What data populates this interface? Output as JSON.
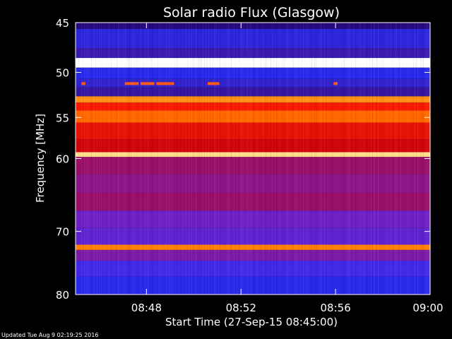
{
  "chart_data": {
    "type": "heatmap",
    "title": "Solar radio Flux (Glasgow)",
    "xlabel": "Start Time (27-Sep-15 08:45:00)",
    "ylabel": "Frequency [MHz]",
    "x_unit": "time",
    "x_range": [
      "08:45",
      "09:00"
    ],
    "x_ticks": [
      "08:48",
      "08:52",
      "08:56",
      "09:00"
    ],
    "y_range": [
      45,
      80
    ],
    "y_ticks": [
      45,
      50,
      55,
      60,
      70,
      80
    ],
    "y_scale": "log",
    "colormap": [
      "#000000",
      "#1a0060",
      "#3b1cb0",
      "#2030ff",
      "#7020c0",
      "#c00010",
      "#ff2000",
      "#ff8000",
      "#ffd060",
      "#ffffff"
    ],
    "spectral_bands": [
      {
        "from": 45.0,
        "to": 45.6,
        "level": 0.15
      },
      {
        "from": 45.6,
        "to": 47.5,
        "level": 0.28
      },
      {
        "from": 47.5,
        "to": 48.5,
        "level": 0.22
      },
      {
        "from": 48.5,
        "to": 49.5,
        "level": 1.0
      },
      {
        "from": 49.5,
        "to": 50.7,
        "level": 0.3
      },
      {
        "from": 50.7,
        "to": 51.6,
        "level": 0.26
      },
      {
        "from": 51.6,
        "to": 52.6,
        "level": 0.2
      },
      {
        "from": 52.6,
        "to": 53.3,
        "level": 0.8
      },
      {
        "from": 53.3,
        "to": 54.2,
        "level": 0.65
      },
      {
        "from": 54.2,
        "to": 55.6,
        "level": 0.75
      },
      {
        "from": 55.6,
        "to": 57.6,
        "level": 0.62
      },
      {
        "from": 57.6,
        "to": 59.2,
        "level": 0.58
      },
      {
        "from": 59.2,
        "to": 59.8,
        "level": 0.92
      },
      {
        "from": 59.8,
        "to": 62.0,
        "level": 0.5
      },
      {
        "from": 62.0,
        "to": 64.5,
        "level": 0.48
      },
      {
        "from": 64.5,
        "to": 67.0,
        "level": 0.5
      },
      {
        "from": 67.0,
        "to": 69.5,
        "level": 0.44
      },
      {
        "from": 69.5,
        "to": 72.0,
        "level": 0.42
      },
      {
        "from": 72.0,
        "to": 72.8,
        "level": 0.78
      },
      {
        "from": 72.8,
        "to": 74.5,
        "level": 0.46
      },
      {
        "from": 74.5,
        "to": 77.0,
        "level": 0.38
      },
      {
        "from": 77.0,
        "to": 80.0,
        "level": 0.3
      }
    ],
    "bursts": [
      {
        "freq": 51.2,
        "t_start": "08:45:15",
        "t_end": "08:45:25"
      },
      {
        "freq": 51.2,
        "t_start": "08:47:05",
        "t_end": "08:47:40"
      },
      {
        "freq": 51.2,
        "t_start": "08:47:45",
        "t_end": "08:48:20"
      },
      {
        "freq": 51.2,
        "t_start": "08:48:25",
        "t_end": "08:49:10"
      },
      {
        "freq": 51.2,
        "t_start": "08:50:35",
        "t_end": "08:51:05"
      },
      {
        "freq": 51.2,
        "t_start": "08:55:55",
        "t_end": "08:56:05"
      }
    ]
  },
  "footer": {
    "updated": "Updated Tue Aug  9 02:19:25 2016"
  }
}
